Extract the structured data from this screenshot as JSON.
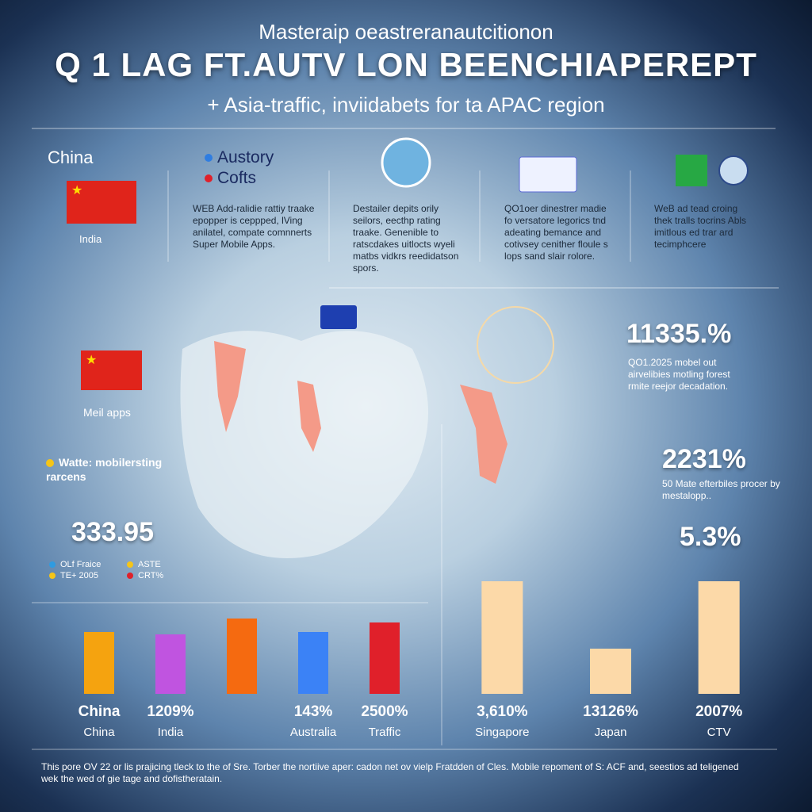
{
  "header": {
    "kicker": "Masteraip oeastreranautcitionon",
    "title": "Q 1 LAG FT.AUTV LON BEENCHIAPEREPT",
    "subtitle": "+ Asia-traffic, inviidabets for ta APAC region"
  },
  "panels": [
    {
      "title": "China",
      "caption": "India"
    },
    {
      "legend": [
        "Austory",
        "Cofts"
      ],
      "text": "WEB Add-ralidie rattiy traake epopper is ceppped, lVing anilatel, compate comnnerts Super Mobile Apps."
    },
    {
      "text": "Destailer depits orily seilors, eecthp rating traake. Genenible to ratscdakes uitlocts wyeli matbs vidkrs reedidatson spors."
    },
    {
      "text": "QO1oer dinestrer madie fo versatore legorics tnd adeating bemance and cotivsey cenither floule s lops sand slair rolore."
    },
    {
      "text": "WeB ad tead croing thek tralls tocrins Abls imitlous ed trar ard tecimphcere"
    }
  ],
  "left": {
    "flag_caption": "Meil apps",
    "note": "Watte: mobilersting rarcens",
    "stat": "333.95",
    "legend": [
      "OLf Fraice",
      "TE+ 2005",
      "ASTE",
      "CRT%"
    ]
  },
  "right": [
    {
      "value": "11335.%",
      "text": "QO1.2025 mobel out airvelibies motling forest rmite reejor decadation."
    },
    {
      "value": "2231%",
      "text": "50 Mate efterbiles procer by mestalopp.."
    },
    {
      "value": "5.3%"
    }
  ],
  "chart_data": [
    {
      "type": "bar",
      "categories": [
        "China",
        "India",
        null,
        "Australia",
        "Traffic"
      ],
      "bar_labels": [
        "China",
        "1209%",
        null,
        "143%",
        "2500%"
      ],
      "values": [
        78,
        75,
        95,
        78,
        90
      ],
      "colors": [
        "#f5a30f",
        "#c054e0",
        "#f56a10",
        "#3b82f6",
        "#e0202a"
      ],
      "ylim": [
        0,
        150
      ]
    },
    {
      "type": "bar",
      "categories": [
        "Singapore",
        "Japan",
        "CTV"
      ],
      "bar_labels": [
        "3,610%",
        "13126%",
        "2007%"
      ],
      "values": [
        142,
        57,
        142
      ],
      "colors": [
        "#fcd9a8",
        "#fcd9a8",
        "#fcd9a8"
      ],
      "ylim": [
        0,
        150
      ]
    }
  ],
  "footer": "This pore OV 22 or lis prajicing tleck to the of Sre. Torber the nortiive aper: cadon net ov vielp Fratdden of Cles. Mobile repoment of S: ACF and, seestios ad teligened wek the wed of gie tage and dofistheratain."
}
